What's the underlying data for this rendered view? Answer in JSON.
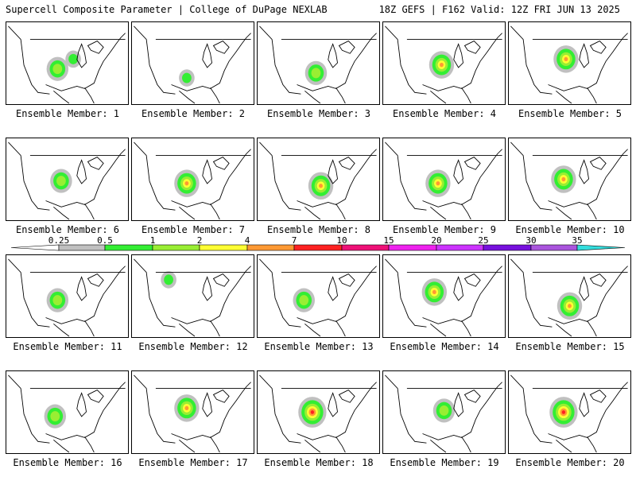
{
  "header": {
    "title": "Supercell Composite Parameter | College of DuPage NEXLAB",
    "run_info": "18Z GEFS | F162 Valid: 12Z FRI JUN 13 2025"
  },
  "colorbar": {
    "labels": [
      "0.25",
      "0.5",
      "1",
      "2",
      "4",
      "7",
      "10",
      "15",
      "20",
      "25",
      "30",
      "35"
    ],
    "colors": [
      "#c0c0c0",
      "#33ee33",
      "#99ee33",
      "#ffff33",
      "#ff9933",
      "#ff2222",
      "#ee1177",
      "#ee22ee",
      "#cc33ff",
      "#7711dd",
      "#aa55dd",
      "#33dddd"
    ]
  },
  "caption_prefix": "Ensemble Member:",
  "members": [
    {
      "number": "1",
      "blobs": [
        [
          0.42,
          0.57,
          "m"
        ],
        [
          0.55,
          0.45,
          "s"
        ]
      ]
    },
    {
      "number": "2",
      "blobs": [
        [
          0.45,
          0.68,
          "s"
        ]
      ]
    },
    {
      "number": "3",
      "blobs": [
        [
          0.48,
          0.62,
          "m"
        ]
      ]
    },
    {
      "number": "4",
      "blobs": [
        [
          0.48,
          0.52,
          "h"
        ]
      ]
    },
    {
      "number": "5",
      "blobs": [
        [
          0.47,
          0.45,
          "h"
        ]
      ]
    },
    {
      "number": "6",
      "blobs": [
        [
          0.45,
          0.52,
          "m"
        ]
      ]
    },
    {
      "number": "7",
      "blobs": [
        [
          0.45,
          0.55,
          "h"
        ]
      ]
    },
    {
      "number": "8",
      "blobs": [
        [
          0.52,
          0.58,
          "h"
        ]
      ]
    },
    {
      "number": "9",
      "blobs": [
        [
          0.45,
          0.55,
          "h"
        ]
      ]
    },
    {
      "number": "10",
      "blobs": [
        [
          0.45,
          0.5,
          "h"
        ]
      ]
    },
    {
      "number": "11",
      "blobs": [
        [
          0.42,
          0.55,
          "m"
        ]
      ]
    },
    {
      "number": "12",
      "blobs": [
        [
          0.3,
          0.3,
          "s"
        ]
      ]
    },
    {
      "number": "13",
      "blobs": [
        [
          0.38,
          0.55,
          "m"
        ]
      ]
    },
    {
      "number": "14",
      "blobs": [
        [
          0.42,
          0.45,
          "h"
        ]
      ]
    },
    {
      "number": "15",
      "blobs": [
        [
          0.5,
          0.62,
          "h"
        ]
      ]
    },
    {
      "number": "16",
      "blobs": [
        [
          0.4,
          0.55,
          "m"
        ]
      ]
    },
    {
      "number": "17",
      "blobs": [
        [
          0.45,
          0.45,
          "h"
        ]
      ]
    },
    {
      "number": "18",
      "blobs": [
        [
          0.45,
          0.5,
          "vh"
        ]
      ]
    },
    {
      "number": "19",
      "blobs": [
        [
          0.5,
          0.48,
          "m"
        ]
      ]
    },
    {
      "number": "20",
      "blobs": [
        [
          0.45,
          0.5,
          "vh"
        ]
      ]
    }
  ]
}
